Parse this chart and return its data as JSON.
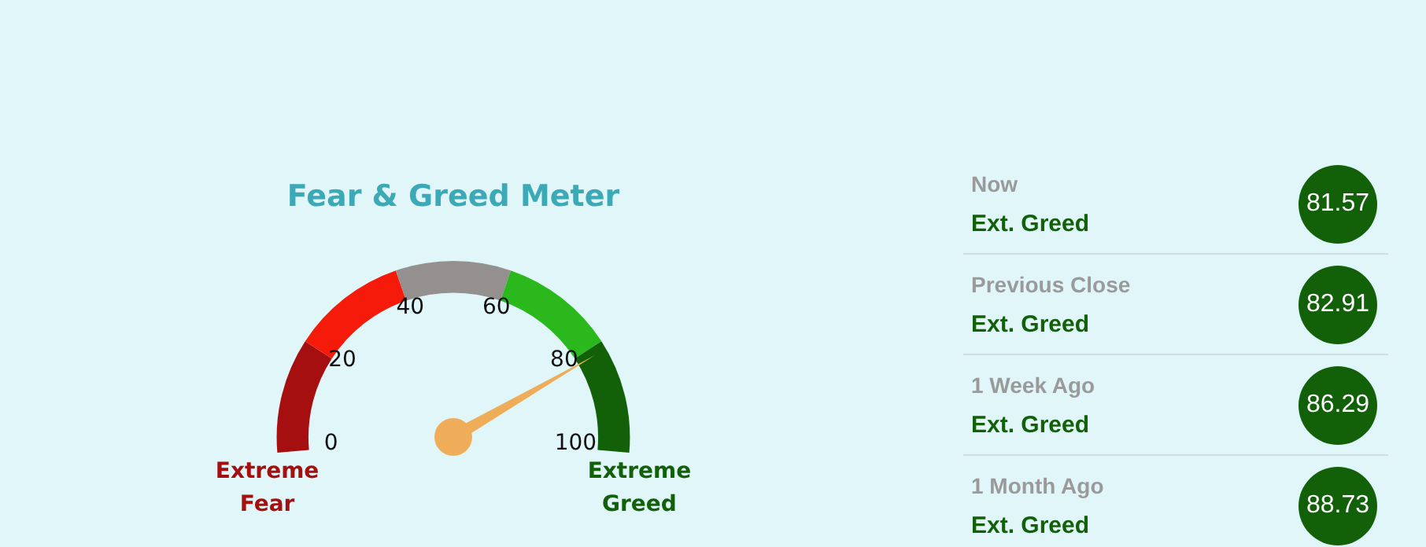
{
  "chart_data": [
    {
      "type": "donut",
      "title": "Fear & Greed Meter",
      "categories": [
        "Extreme Fear",
        null,
        null,
        null,
        "Extreme Greed"
      ],
      "values": [
        20,
        20,
        20,
        20,
        20
      ],
      "colors": [
        "#a50f0f",
        "#f51a0a",
        "#959090",
        "#2bb81d",
        "#126109"
      ],
      "needle": "Extreme Greed",
      "annotations": [
        "0",
        "20",
        "40",
        "60",
        "80",
        "100"
      ]
    },
    {
      "type": "other",
      "categories": [
        "Now",
        "Previous Close",
        "1 Week Ago",
        "1 Month Ago"
      ],
      "values": [
        81.57,
        82.91,
        86.29,
        88.73
      ],
      "data_labels": true,
      "color": "#126109",
      "annotations": [
        "Ext. Greed",
        "Ext. Greed",
        "Ext. Greed",
        "Ext. Greed"
      ]
    }
  ]
}
